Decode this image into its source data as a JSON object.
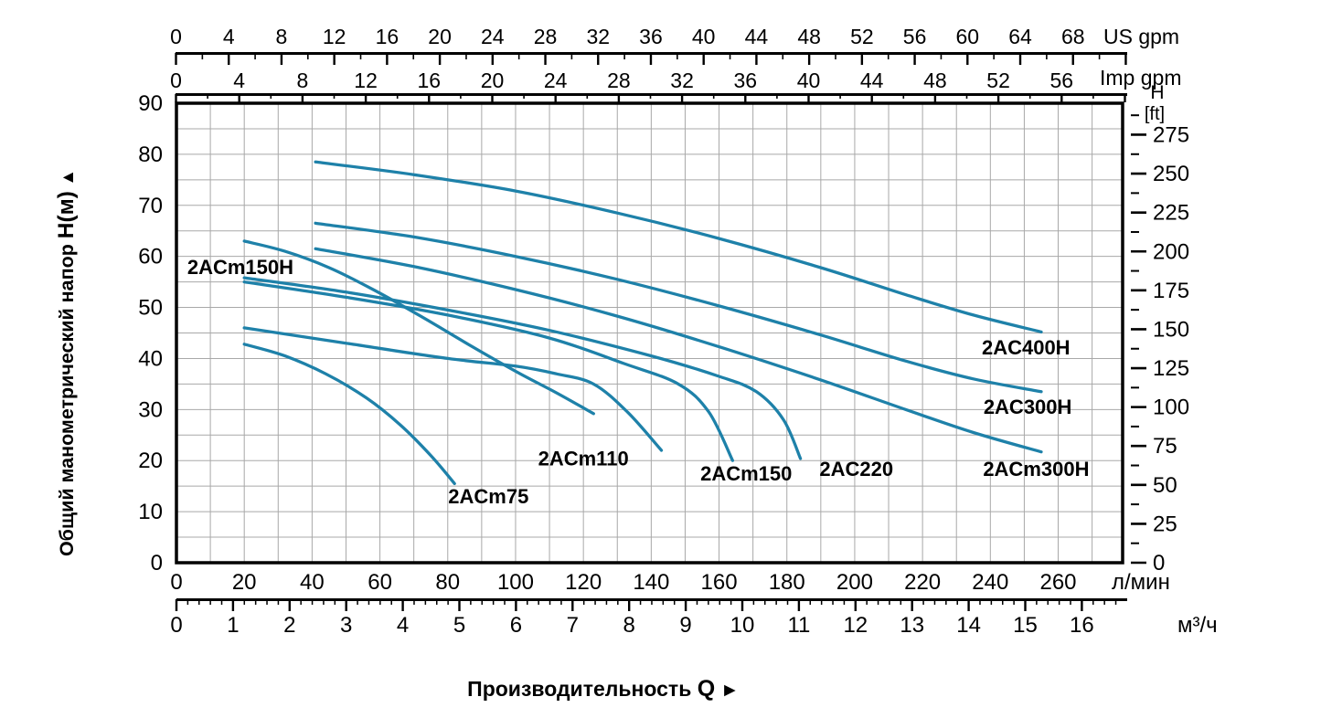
{
  "axes": {
    "us_gpm": {
      "unit_label": "US gpm",
      "ticks": [
        0,
        4,
        8,
        12,
        16,
        20,
        24,
        28,
        32,
        36,
        40,
        44,
        48,
        52,
        56,
        60,
        64,
        68
      ]
    },
    "imp_gpm": {
      "unit_label": "Imp gpm",
      "ticks": [
        0,
        4,
        8,
        12,
        16,
        20,
        24,
        28,
        32,
        36,
        40,
        44,
        48,
        52,
        56
      ]
    },
    "h_m": {
      "axis_title": "Общий манометрический напор",
      "axis_title_bold": "H(м)",
      "arrow_up": "▲",
      "ticks": [
        0,
        10,
        20,
        30,
        40,
        50,
        60,
        70,
        80,
        90
      ]
    },
    "h_ft": {
      "header_line1": "H",
      "header_line2": "[ft]",
      "ticks": [
        0,
        25,
        50,
        75,
        100,
        125,
        150,
        175,
        200,
        225,
        250,
        275
      ]
    },
    "lpm": {
      "unit_label": "л/мин",
      "ticks": [
        0,
        20,
        40,
        60,
        80,
        100,
        120,
        140,
        160,
        180,
        200,
        220,
        240,
        260
      ]
    },
    "m3h": {
      "unit_label": "м³/ч",
      "ticks": [
        0,
        1,
        2,
        3,
        4,
        5,
        6,
        7,
        8,
        9,
        10,
        11,
        12,
        13,
        14,
        15,
        16
      ]
    }
  },
  "x_axis_title": {
    "text": "Производительность",
    "symbol": "Q",
    "arrow_right": "►"
  },
  "chart_data": {
    "type": "line",
    "title": "",
    "xlabel": "Производительность Q",
    "ylabel": "Общий манометрический напор H(м)",
    "x_unit_primary": "л/мин",
    "x_range_lpm": [
      0,
      279
    ],
    "y_unit": "м",
    "y_range_m": [
      0,
      90
    ],
    "grid": {
      "x_step_lpm": 10,
      "y_step_m": 5,
      "visible": true
    },
    "color": "#1e81a9",
    "grid_color": "#a8a8a8",
    "series": [
      {
        "name": "2ACm75",
        "points": [
          [
            20,
            42.8
          ],
          [
            32,
            40.5
          ],
          [
            44,
            37
          ],
          [
            56,
            32.3
          ],
          [
            66,
            27
          ],
          [
            75,
            21
          ],
          [
            82,
            15.5
          ]
        ],
        "label_at": [
          92,
          11.6
        ],
        "label_anchor": "middle"
      },
      {
        "name": "2ACm110",
        "points": [
          [
            20,
            46
          ],
          [
            50,
            43
          ],
          [
            80,
            40
          ],
          [
            100,
            38.5
          ],
          [
            112,
            37
          ],
          [
            123,
            35
          ],
          [
            133,
            29.5
          ],
          [
            143,
            22
          ]
        ],
        "label_at": [
          120,
          19.1
        ],
        "label_anchor": "middle"
      },
      {
        "name": "2ACm150",
        "points": [
          [
            20,
            55
          ],
          [
            50,
            52
          ],
          [
            80,
            48.5
          ],
          [
            110,
            44
          ],
          [
            132,
            39
          ],
          [
            148,
            35
          ],
          [
            157,
            29.5
          ],
          [
            164,
            20
          ]
        ],
        "label_at": [
          168,
          16.1
        ],
        "label_anchor": "middle"
      },
      {
        "name": "2AC220",
        "points": [
          [
            20,
            55.8
          ],
          [
            50,
            53
          ],
          [
            80,
            49.5
          ],
          [
            110,
            45.5
          ],
          [
            140,
            40.5
          ],
          [
            160,
            36.5
          ],
          [
            171,
            33.5
          ],
          [
            179,
            28
          ],
          [
            184,
            20.4
          ]
        ],
        "label_at": [
          200.5,
          17
        ],
        "label_anchor": "middle"
      },
      {
        "name": "2ACm150H",
        "points": [
          [
            20,
            63
          ],
          [
            32,
            61
          ],
          [
            45,
            57.8
          ],
          [
            58,
            53.5
          ],
          [
            72,
            48.3
          ],
          [
            86,
            42.8
          ],
          [
            100,
            37.5
          ],
          [
            112,
            33.3
          ],
          [
            123,
            29.2
          ]
        ],
        "label_at": [
          3.2,
          56.5
        ],
        "label_anchor": "start"
      },
      {
        "name": "2ACm300H",
        "points": [
          [
            41,
            61.5
          ],
          [
            70,
            58
          ],
          [
            100,
            53.5
          ],
          [
            130,
            48.3
          ],
          [
            160,
            42.3
          ],
          [
            190,
            35.8
          ],
          [
            215,
            30
          ],
          [
            235,
            25.5
          ],
          [
            255,
            21.7
          ]
        ],
        "label_at": [
          253.5,
          17
        ],
        "label_anchor": "middle"
      },
      {
        "name": "2AC300H",
        "points": [
          [
            41,
            66.5
          ],
          [
            70,
            63.8
          ],
          [
            100,
            60
          ],
          [
            130,
            55.5
          ],
          [
            160,
            50.3
          ],
          [
            190,
            44.6
          ],
          [
            215,
            39.5
          ],
          [
            235,
            36
          ],
          [
            255,
            33.5
          ]
        ],
        "label_at": [
          251,
          29.2
        ],
        "label_anchor": "middle"
      },
      {
        "name": "2AC400H",
        "points": [
          [
            41,
            78.5
          ],
          [
            70,
            76
          ],
          [
            100,
            72.8
          ],
          [
            130,
            68.5
          ],
          [
            160,
            63.5
          ],
          [
            190,
            57.8
          ],
          [
            215,
            52.5
          ],
          [
            235,
            48.5
          ],
          [
            255,
            45.2
          ]
        ],
        "label_at": [
          250.5,
          40.8
        ],
        "label_anchor": "middle"
      }
    ]
  }
}
